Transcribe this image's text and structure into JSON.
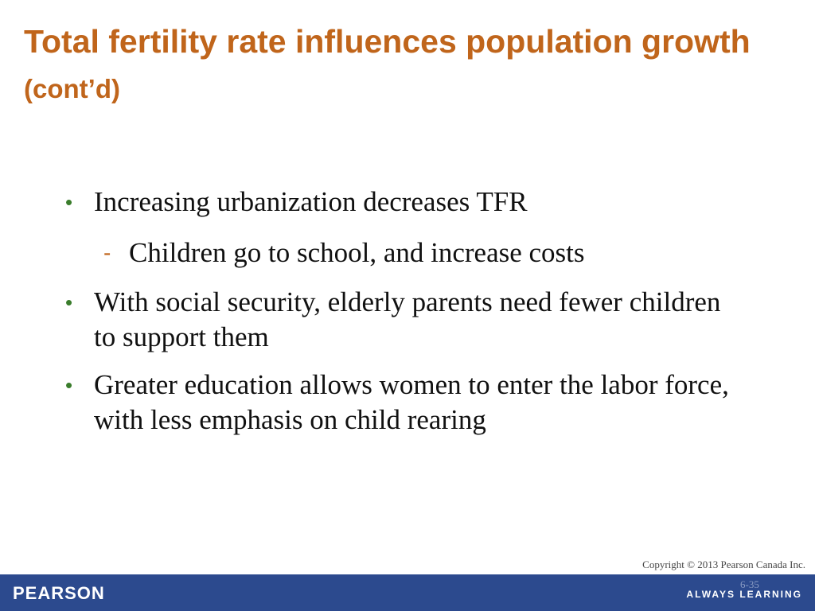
{
  "slide": {
    "title_main": "Total fertility rate influences population growth",
    "title_suffix": "(cont’d)",
    "bullets": [
      {
        "text": "Increasing urbanization decreases TFR",
        "sub": "Children go to school, and increase costs"
      },
      {
        "text": "With social security, elderly parents need fewer children to support them"
      },
      {
        "text": "Greater education allows women to enter the labor force, with less emphasis on child rearing"
      }
    ],
    "bullet_symbol": "•",
    "sub_symbol": "-"
  },
  "footer": {
    "copyright": "Copyright © 2013 Pearson Canada Inc.",
    "slide_number": "6-35",
    "brand": "PEARSON",
    "tagline": "ALWAYS LEARNING"
  },
  "colors": {
    "title": "#c0651b",
    "bullet": "#3a7d2c",
    "footer_bar": "#2c4a8e"
  }
}
